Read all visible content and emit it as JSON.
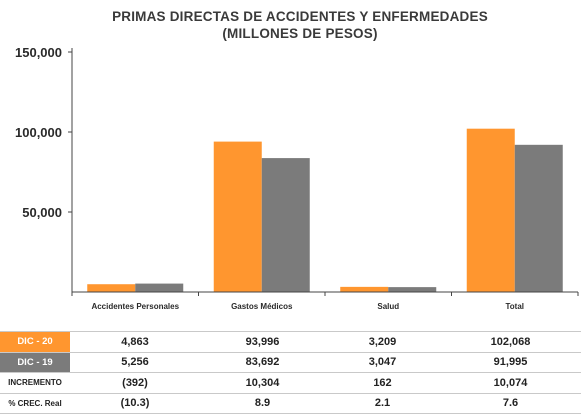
{
  "colors": {
    "series_2020": "#ff962f",
    "series_2019": "#7b7b7b",
    "axis": "#444444"
  },
  "chart_data": {
    "type": "bar",
    "title": "PRIMAS DIRECTAS DE ACCIDENTES Y ENFERMEDADES",
    "subtitle": "(MILLONES DE PESOS)",
    "categories": [
      "Accidentes Personales",
      "Gastos Médicos",
      "Salud",
      "Total"
    ],
    "series": [
      {
        "name": "DIC - 20",
        "color": "#ff962f",
        "values": [
          4863,
          93996,
          3209,
          102068
        ]
      },
      {
        "name": "DIC - 19",
        "color": "#7b7b7b",
        "values": [
          5256,
          83692,
          3047,
          91995
        ]
      }
    ],
    "ylim": [
      0,
      150000
    ],
    "yticks": [
      50000,
      100000,
      150000
    ],
    "ytick_labels": [
      "50,000",
      "100,000",
      "150,000"
    ],
    "grid": false,
    "legend": "table-below"
  },
  "table": {
    "rows": [
      {
        "label": "DIC - 20",
        "values": [
          "4,863",
          "93,996",
          "3,209",
          "102,068"
        ]
      },
      {
        "label": "DIC - 19",
        "values": [
          "5,256",
          "83,692",
          "3,047",
          "91,995"
        ]
      },
      {
        "label": "INCREMENTO",
        "values": [
          "(392)",
          "10,304",
          "162",
          "10,074"
        ]
      },
      {
        "label": "% CREC. Real",
        "values": [
          "(10.3)",
          "8.9",
          "2.1",
          "7.6"
        ]
      }
    ]
  }
}
